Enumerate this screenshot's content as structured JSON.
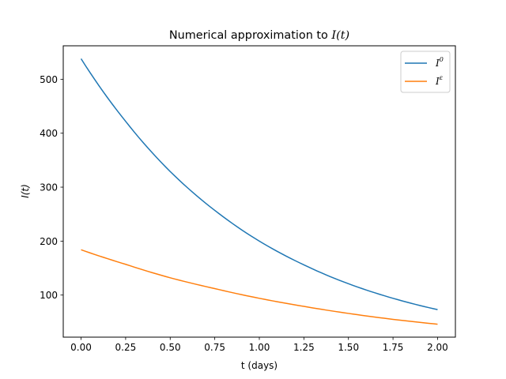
{
  "chart_data": {
    "type": "line",
    "title_main": "Numerical approximation to ",
    "title_math": "I(t)",
    "xlabel": "t (days)",
    "ylabel": "I(t)",
    "xlim": [
      -0.1,
      2.1
    ],
    "ylim": [
      22,
      562
    ],
    "xticks": [
      0.0,
      0.25,
      0.5,
      0.75,
      1.0,
      1.25,
      1.5,
      1.75,
      2.0
    ],
    "xtick_labels": [
      "0.00",
      "0.25",
      "0.50",
      "0.75",
      "1.00",
      "1.25",
      "1.50",
      "1.75",
      "2.00"
    ],
    "yticks": [
      100,
      200,
      300,
      400,
      500
    ],
    "ytick_labels": [
      "100",
      "200",
      "300",
      "400",
      "500"
    ],
    "legend_position": "top-right",
    "series": [
      {
        "name": "I^0",
        "legend_base": "I",
        "legend_sup": "0",
        "color": "#1f77b4",
        "x": [
          0.0,
          0.25,
          0.5,
          0.75,
          1.0,
          1.25,
          1.5,
          1.75,
          2.0
        ],
        "values": [
          538,
          422,
          329,
          257,
          200,
          156,
          121,
          94,
          73
        ]
      },
      {
        "name": "I^ε",
        "legend_base": "I",
        "legend_sup": "ε",
        "color": "#ff7f0e",
        "x": [
          0.0,
          0.25,
          0.5,
          0.75,
          1.0,
          1.25,
          1.5,
          1.75,
          2.0
        ],
        "values": [
          184,
          157,
          132,
          112,
          94,
          79,
          66,
          55,
          46
        ]
      }
    ]
  }
}
